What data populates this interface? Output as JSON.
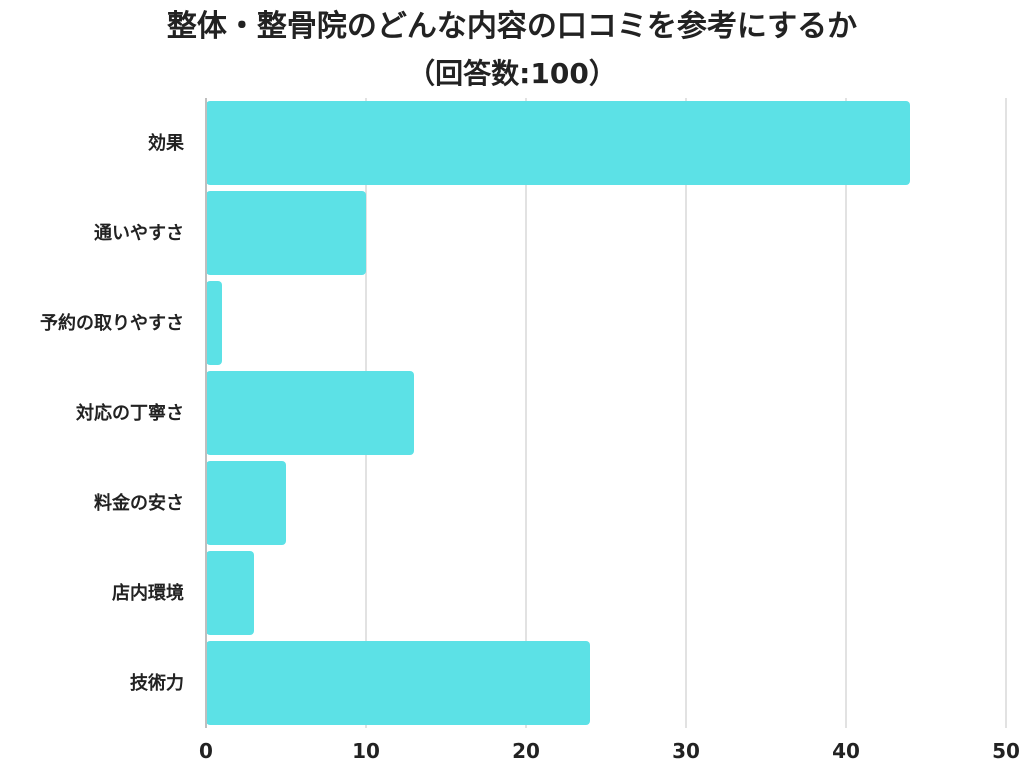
{
  "chart_data": {
    "type": "bar",
    "orientation": "horizontal",
    "title": "整体・整骨院のどんな内容の口コミを参考にするか",
    "subtitle": "（回答数:100）",
    "categories": [
      "効果",
      "通いやすさ",
      "予約の取りやすさ",
      "対応の丁寧さ",
      "料金の安さ",
      "店内環境",
      "技術力"
    ],
    "values": [
      44,
      10,
      1,
      13,
      5,
      3,
      24
    ],
    "xlim": [
      0,
      50
    ],
    "xticks": [
      0,
      10,
      20,
      30,
      40,
      50
    ],
    "xlabel": "",
    "ylabel": "",
    "grid": true,
    "legend": "none",
    "bar_color": "#5ce1e6",
    "grid_color": "#d9d9d9",
    "axis_color": "#bfbfbf"
  }
}
